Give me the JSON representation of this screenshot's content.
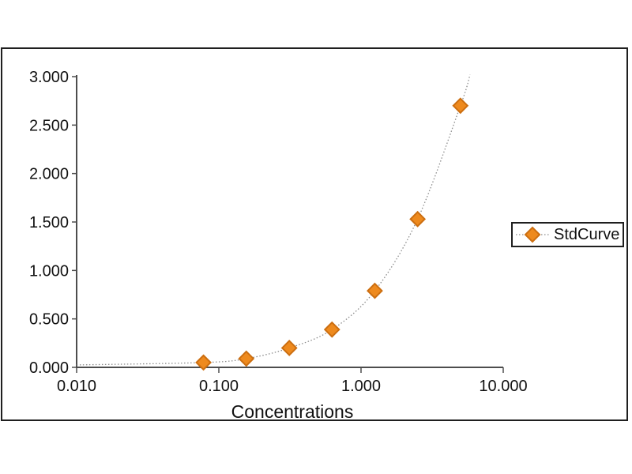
{
  "chart_data": {
    "type": "scatter",
    "title": "",
    "xlabel": "Concentrations",
    "ylabel": "",
    "x_scale": "log",
    "xlim": [
      0.01,
      10
    ],
    "ylim": [
      0,
      3
    ],
    "x_ticks": [
      0.01,
      0.1,
      1,
      10
    ],
    "x_tick_labels": [
      "0.010",
      "0.100",
      "1.000",
      "10.000"
    ],
    "y_ticks": [
      0,
      0.5,
      1,
      1.5,
      2,
      2.5,
      3
    ],
    "y_tick_labels": [
      "0.000",
      "0.500",
      "1.000",
      "1.500",
      "2.000",
      "2.500",
      "3.000"
    ],
    "grid": "off",
    "legend_position": "right",
    "series": [
      {
        "name": "StdCurve",
        "x": [
          0.078,
          0.156,
          0.313,
          0.625,
          1.25,
          2.5,
          5.0
        ],
        "y": [
          0.05,
          0.09,
          0.2,
          0.39,
          0.79,
          1.53,
          2.7
        ]
      }
    ],
    "fit_curve_extent": {
      "start": [
        0.01,
        0.025
      ],
      "end": [
        5.84,
        3.02
      ]
    },
    "colors": {
      "marker_fill": "#EE8A1E",
      "marker_stroke": "#CC6E10",
      "curve_line": "#8c8c8c",
      "axis": "#4d4d4d",
      "text": "#111111",
      "frame": "#1f1f1f"
    }
  },
  "legend": {
    "label": "StdCurve"
  }
}
